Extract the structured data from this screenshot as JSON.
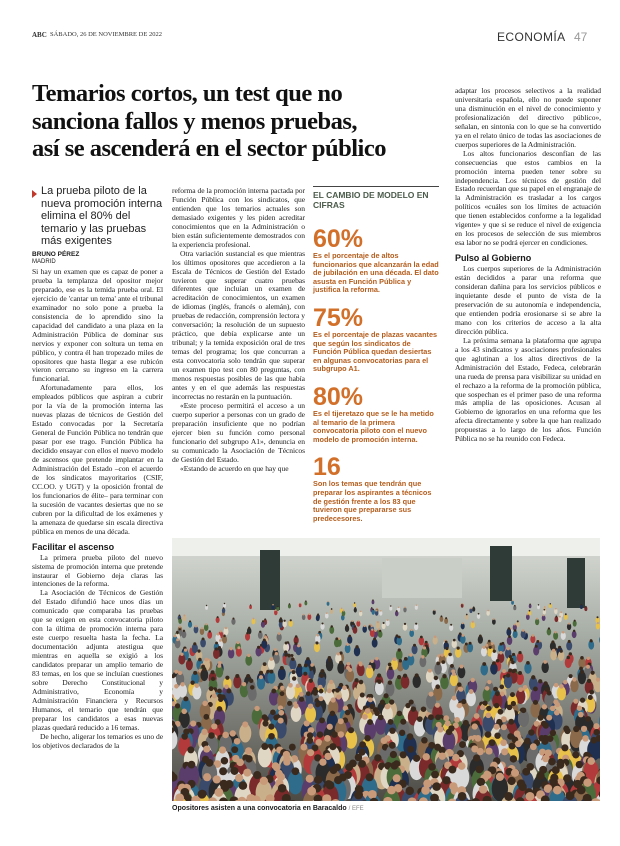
{
  "header": {
    "publication": "ABC",
    "date": "SÁBADO, 26 DE NOVIEMBRE DE 2022",
    "section": "ECONOMÍA",
    "page": "47"
  },
  "article": {
    "headline": [
      "Temarios cortos, un test que no",
      "sanciona fallos y menos pruebas,",
      "así se ascenderá en el sector público"
    ],
    "subtitle": "La prueba piloto de la nueva promoción interna elimina el 80% del temario y las pruebas más exigentes",
    "byline": "BRUNO PÉREZ",
    "location": "MADRID",
    "column1": [
      {
        "paragraphs": [
          "Si hay un examen que es capaz de poner a prueba la templanza del opositor mejor preparado, ese es la temida prueba oral. El ejercicio de 'cantar un tema' ante el tribunal examinador no solo pone a prueba la consistencia de lo aprendido sino la capacidad del candidato a una plaza en la Administración Pública de dominar sus nervios y exponer con soltura un tema en público, y contra él han tropezado miles de opositores que hasta llegar a ese rubicón vieron cercano su ingreso en la carrera funcionarial.",
          "Afortunadamente para ellos, los empleados públicos que aspiran a cubrir por la vía de la promoción interna las nuevas plazas de técnicos de Gestión del Estado convocadas por la Secretaría General de Función Pública no tendrán que pasar por ese trago. Función Pública ha decidido ensayar con ellos el nuevo modelo de ascensos que pretende implantar en la Administración del Estado –con el acuerdo de los sindicatos mayoritarios (CSIF, CC.OO. y UGT) y la oposición frontal de los funcionarios de élite– para terminar con la sucesión de vacantes desiertas que no se cubren por la dificultad de los exámenes y la amenaza de quedarse sin escala directiva pública en menos de una década."
        ]
      },
      {
        "heading": "Facilitar el ascenso",
        "paragraphs": [
          "La primera prueba piloto del nuevo sistema de promoción interna que pretende instaurar el Gobierno deja claras las intenciones de la reforma.",
          "La Asociación de Técnicos de Gestión del Estado difundió hace unos días un comunicado que comparaba las pruebas que se exigen en esta convocatoria piloto con la última de promoción interna para este cuerpo resuelta hasta la fecha. La documentación adjunta atestigua que mientras en aquella se exigió a los candidatos preparar un amplio temario de 83 temas, en los que se incluían cuestiones sobre Derecho Constitucional y Administrativo, Economía y Administración Financiera y Recursos Humanos, el temario que tendrán que preparar los candidatos a esas nuevas plazas quedará reducido a 16 temas.",
          "De hecho, aligerar los temarios es uno de los objetivos declarados de la"
        ]
      }
    ],
    "column2": [
      {
        "paragraphs": [
          "reforma de la promoción interna pactada por Función Pública con los sindicatos, que entienden que los temarios actuales son demasiado exigentes y les piden acreditar conocimientos que en la Administración o bien están suficientemente demostrados con la experiencia profesional.",
          "Otra variación sustancial es que mientras los últimos opositores que accedieron a la Escala de Técnicos de Gestión del Estado tuvieron que superar cuatro pruebas diferentes que incluían un examen de acreditación de conocimientos, un examen de idiomas (inglés, francés o alemán), con pruebas de redacción, comprensión lectora y conversación; la resolución de un supuesto práctico, que debía explicarse ante un tribunal; y la temida exposición oral de tres temas del programa; los que concurran a esta convocatoria solo tendrán que superar un examen tipo test con 80 preguntas, con menos respuestas posibles de las que había antes y en el que además las respuestas incorrectas no restarán en la puntuación.",
          "«Este proceso permitirá el acceso a un cuerpo superior a personas con un grado de preparación insuficiente que no podrían ejercer bien su función como personal funcionario del subgrupo A1», denuncia en su comunicado la Asociación de Técnicos de Gestión del Estado.",
          "«Estando de acuerdo en que hay que"
        ]
      }
    ],
    "column4": [
      {
        "paragraphs": [
          "adaptar los procesos selectivos a la realidad universitaria española, ello no puede suponer una disminución en el nivel de conocimiento y profesionalización del directivo público», señalan, en sintonía con lo que se ha convertido ya en el relato único de todas las asociaciones de cuerpos superiores de la Administración.",
          "Los altos funcionarios desconfían de las consecuencias que estos cambios en la promoción interna pueden tener sobre su independencia. Los técnicos de gestión del Estado recuerdan que su papel en el engranaje de la Administración es trasladar a los cargos políticos «cuáles son los límites de actuación que tienen establecidos conforme a la legalidad vigente» y que si se reduce el nivel de exigencia en los procesos de selección de sus miembros esa labor no se podrá ejercer en condiciones."
        ]
      },
      {
        "heading": "Pulso al Gobierno",
        "paragraphs": [
          "Los cuerpos superiores de la Administración están decididos a parar una reforma que consideran dañina para los servicios públicos e inquietante desde el punto de vista de la preservación de su autonomía e independencia, que entienden podría erosionarse si se abre la mano con los criterios de acceso a la alta dirección pública.",
          "La próxima semana la plataforma que agrupa a los 43 sindicatos y asociaciones profesionales que aglutinan a los altos directivos de la Administración del Estado, Fedeca, celebrarán una rueda de prensa para visibilizar su unidad en el rechazo a la reforma de la promoción pública, que sospechan es el primer paso de una reforma más amplia de las oposiciones. Acusan al Gobierno de ignorarlos en una reforma que les afecta directamente y sobre la que han realizado propuestas a lo largo de los años. Función Pública no se ha reunido con Fedeca."
        ]
      }
    ]
  },
  "sidebar": {
    "title": "EL CAMBIO DE MODELO EN CIFRAS",
    "items": [
      {
        "figure": "60%",
        "text": "Es el porcentaje de altos funcionarios que alcanzarán la edad de jubilación en una década. El dato asusta en Función Pública y justifica la reforma."
      },
      {
        "figure": "75%",
        "text": "Es el porcentaje de plazas vacantes que según los sindicatos de Función Pública quedan desiertas en algunas convocatorias para el subgrupo A1."
      },
      {
        "figure": "80%",
        "text": "Es el tijeretazo que se le ha metido al temario de la primera convocatoria piloto con el nuevo modelo de promoción interna."
      },
      {
        "figure": "16",
        "text": "Son los temas que tendrán que preparar los aspirantes a técnicos de gestión frente a los 83 que tuvieron que prepararse sus predecesores."
      }
    ]
  },
  "photo": {
    "caption": "Opositores asisten a una convocatoria en Baracaldo",
    "credit": "/ EFE"
  }
}
